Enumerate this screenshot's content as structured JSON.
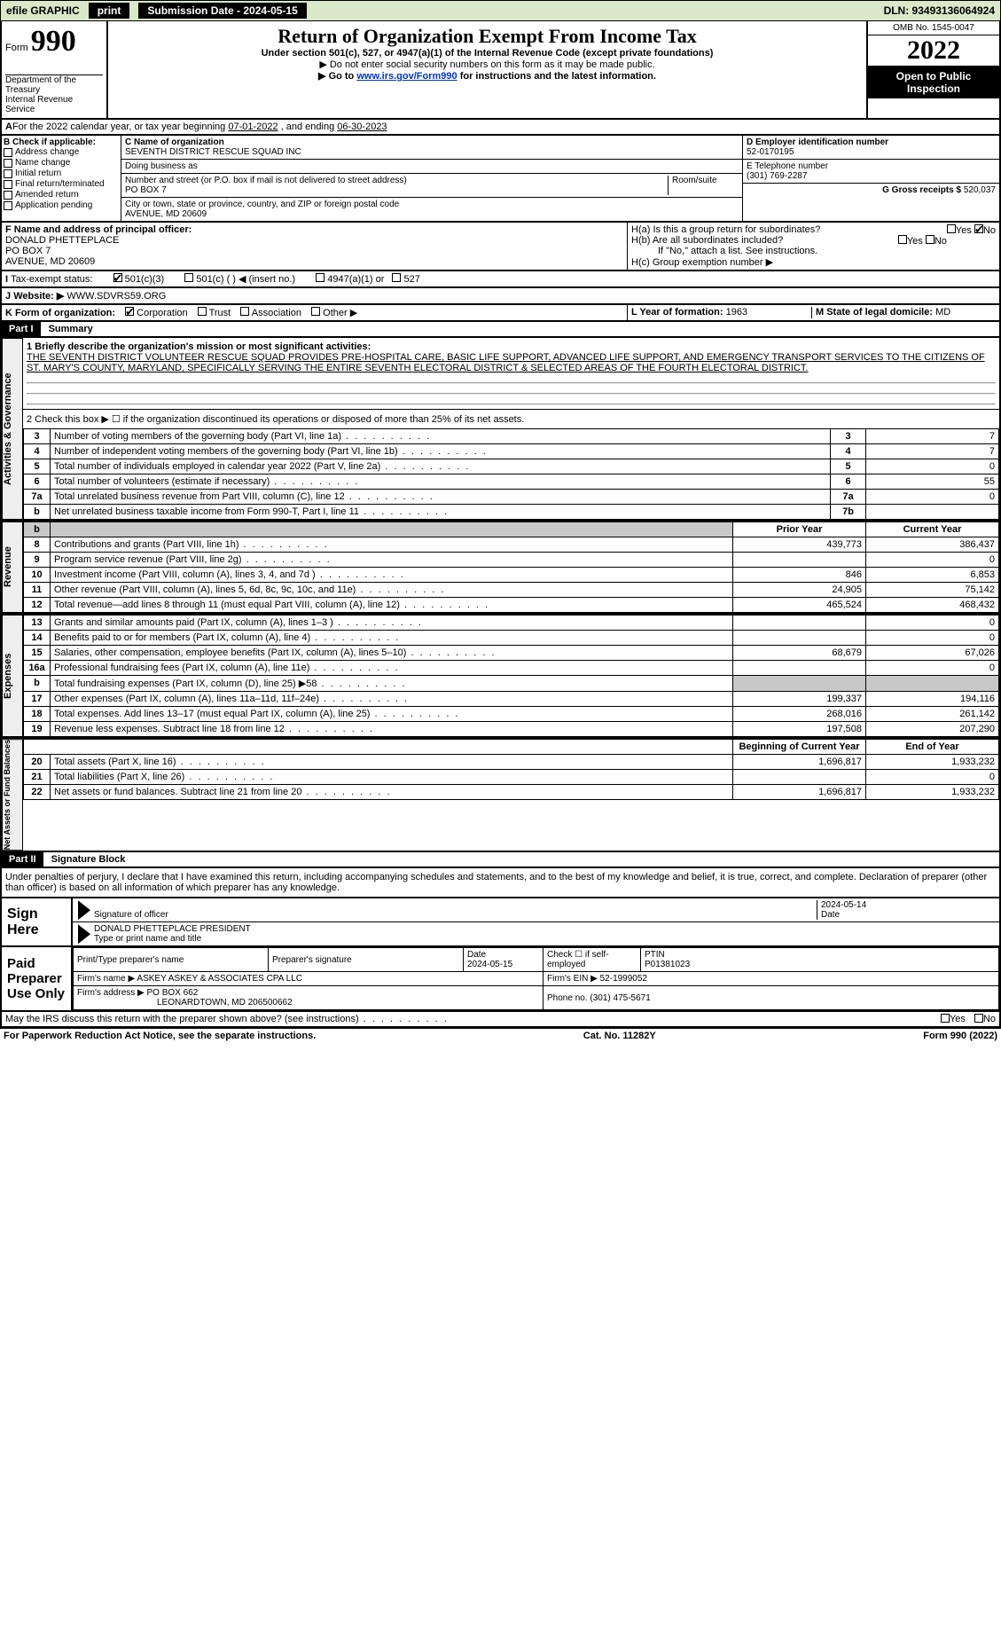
{
  "topbar": {
    "efile": "efile GRAPHIC",
    "print": "print",
    "submission_label": "Submission Date - 2024-05-15",
    "dln": "DLN: 93493136064924"
  },
  "header": {
    "form_prefix": "Form",
    "form_number": "990",
    "title": "Return of Organization Exempt From Income Tax",
    "subtitle": "Under section 501(c), 527, or 4947(a)(1) of the Internal Revenue Code (except private foundations)",
    "warn": "▶ Do not enter social security numbers on this form as it may be made public.",
    "goto_pre": "▶ Go to ",
    "goto_link": "www.irs.gov/Form990",
    "goto_post": " for instructions and the latest information.",
    "dept": "Department of the Treasury",
    "irs": "Internal Revenue Service",
    "omb": "OMB No. 1545-0047",
    "year": "2022",
    "open": "Open to Public Inspection"
  },
  "A": {
    "text_pre": "For the 2022 calendar year, or tax year beginning ",
    "begin": "07-01-2022",
    "mid": " , and ending ",
    "end": "06-30-2023"
  },
  "B": {
    "label": "B Check if applicable:",
    "items": [
      "Address change",
      "Name change",
      "Initial return",
      "Final return/terminated",
      "Amended return",
      "Application pending"
    ]
  },
  "C": {
    "label_name": "C Name of organization",
    "name": "SEVENTH DISTRICT RESCUE SQUAD INC",
    "dba_label": "Doing business as",
    "dba": "",
    "street_label": "Number and street (or P.O. box if mail is not delivered to street address)",
    "room_label": "Room/suite",
    "street": "PO BOX 7",
    "city_label": "City or town, state or province, country, and ZIP or foreign postal code",
    "city": "AVENUE, MD  20609"
  },
  "D": {
    "label": "D Employer identification number",
    "value": "52-0170195"
  },
  "E": {
    "label": "E Telephone number",
    "value": "(301) 769-2287"
  },
  "G": {
    "label": "G Gross receipts $",
    "value": "520,037"
  },
  "F": {
    "label": "F  Name and address of principal officer:",
    "name": "DONALD PHETTEPLACE",
    "addr1": "PO BOX 7",
    "addr2": "AVENUE, MD  20609"
  },
  "H": {
    "a": "H(a)  Is this a group return for subordinates?",
    "a_yes": "Yes",
    "a_no": "No",
    "b": "H(b)  Are all subordinates included?",
    "b_yes": "Yes",
    "b_no": "No",
    "b_note": "If \"No,\" attach a list. See instructions.",
    "c": "H(c)  Group exemption number ▶"
  },
  "I": {
    "label": "Tax-exempt status:",
    "opts": [
      "501(c)(3)",
      "501(c) (  ) ◀ (insert no.)",
      "4947(a)(1) or",
      "527"
    ]
  },
  "J": {
    "label": "Website: ▶",
    "value": "WWW.SDVRS59.ORG"
  },
  "K": {
    "label": "K Form of organization:",
    "opts": [
      "Corporation",
      "Trust",
      "Association",
      "Other ▶"
    ]
  },
  "L": {
    "label": "L Year of formation:",
    "value": "1963"
  },
  "M": {
    "label": "M State of legal domicile:",
    "value": "MD"
  },
  "part1": {
    "title": "Part I",
    "heading": "Summary",
    "line1_label": "1  Briefly describe the organization's mission or most significant activities:",
    "line1_text": "THE SEVENTH DISTRICT VOLUNTEER RESCUE SQUAD PROVIDES PRE-HOSPITAL CARE, BASIC LIFE SUPPORT, ADVANCED LIFE SUPPORT, AND EMERGENCY TRANSPORT SERVICES TO THE CITIZENS OF ST. MARY'S COUNTY, MARYLAND, SPECIFICALLY SERVING THE ENTIRE SEVENTH ELECTORAL DISTRICT & SELECTED AREAS OF THE FOURTH ELECTORAL DISTRICT.",
    "line2": "2   Check this box ▶ ☐  if the organization discontinued its operations or disposed of more than 25% of its net assets.",
    "sidebar_gov": "Activities & Governance",
    "sidebar_rev": "Revenue",
    "sidebar_exp": "Expenses",
    "sidebar_net": "Net Assets or Fund Balances",
    "col_prior": "Prior Year",
    "col_current": "Current Year",
    "col_boy": "Beginning of Current Year",
    "col_eoy": "End of Year",
    "rows_gov": [
      {
        "n": "3",
        "t": "Number of voting members of the governing body (Part VI, line 1a)",
        "box": "3",
        "v": "7"
      },
      {
        "n": "4",
        "t": "Number of independent voting members of the governing body (Part VI, line 1b)",
        "box": "4",
        "v": "7"
      },
      {
        "n": "5",
        "t": "Total number of individuals employed in calendar year 2022 (Part V, line 2a)",
        "box": "5",
        "v": "0"
      },
      {
        "n": "6",
        "t": "Total number of volunteers (estimate if necessary)",
        "box": "6",
        "v": "55"
      },
      {
        "n": "7a",
        "t": "Total unrelated business revenue from Part VIII, column (C), line 12",
        "box": "7a",
        "v": "0"
      },
      {
        "n": "b",
        "t": "Net unrelated business taxable income from Form 990-T, Part I, line 11",
        "box": "7b",
        "v": ""
      }
    ],
    "rows_rev": [
      {
        "n": "8",
        "t": "Contributions and grants (Part VIII, line 1h)",
        "p": "439,773",
        "c": "386,437"
      },
      {
        "n": "9",
        "t": "Program service revenue (Part VIII, line 2g)",
        "p": "",
        "c": "0"
      },
      {
        "n": "10",
        "t": "Investment income (Part VIII, column (A), lines 3, 4, and 7d )",
        "p": "846",
        "c": "6,853"
      },
      {
        "n": "11",
        "t": "Other revenue (Part VIII, column (A), lines 5, 6d, 8c, 9c, 10c, and 11e)",
        "p": "24,905",
        "c": "75,142"
      },
      {
        "n": "12",
        "t": "Total revenue—add lines 8 through 11 (must equal Part VIII, column (A), line 12)",
        "p": "465,524",
        "c": "468,432"
      }
    ],
    "rows_exp": [
      {
        "n": "13",
        "t": "Grants and similar amounts paid (Part IX, column (A), lines 1–3 )",
        "p": "",
        "c": "0"
      },
      {
        "n": "14",
        "t": "Benefits paid to or for members (Part IX, column (A), line 4)",
        "p": "",
        "c": "0"
      },
      {
        "n": "15",
        "t": "Salaries, other compensation, employee benefits (Part IX, column (A), lines 5–10)",
        "p": "68,679",
        "c": "67,026"
      },
      {
        "n": "16a",
        "t": "Professional fundraising fees (Part IX, column (A), line 11e)",
        "p": "",
        "c": "0"
      },
      {
        "n": "b",
        "t": "Total fundraising expenses (Part IX, column (D), line 25) ▶58",
        "p": "GRAY",
        "c": "GRAY"
      },
      {
        "n": "17",
        "t": "Other expenses (Part IX, column (A), lines 11a–11d, 11f–24e)",
        "p": "199,337",
        "c": "194,116"
      },
      {
        "n": "18",
        "t": "Total expenses. Add lines 13–17 (must equal Part IX, column (A), line 25)",
        "p": "268,016",
        "c": "261,142"
      },
      {
        "n": "19",
        "t": "Revenue less expenses. Subtract line 18 from line 12",
        "p": "197,508",
        "c": "207,290"
      }
    ],
    "rows_net": [
      {
        "n": "20",
        "t": "Total assets (Part X, line 16)",
        "p": "1,696,817",
        "c": "1,933,232"
      },
      {
        "n": "21",
        "t": "Total liabilities (Part X, line 26)",
        "p": "",
        "c": "0"
      },
      {
        "n": "22",
        "t": "Net assets or fund balances. Subtract line 21 from line 20",
        "p": "1,696,817",
        "c": "1,933,232"
      }
    ]
  },
  "part2": {
    "title": "Part II",
    "heading": "Signature Block",
    "declaration": "Under penalties of perjury, I declare that I have examined this return, including accompanying schedules and statements, and to the best of my knowledge and belief, it is true, correct, and complete. Declaration of preparer (other than officer) is based on all information of which preparer has any knowledge."
  },
  "sign": {
    "here": "Sign Here",
    "sig_officer": "Signature of officer",
    "date_label": "Date",
    "date": "2024-05-14",
    "name": "DONALD PHETTEPLACE  PRESIDENT",
    "name_label": "Type or print name and title"
  },
  "paid": {
    "label": "Paid Preparer Use Only",
    "h_name": "Print/Type preparer's name",
    "h_sig": "Preparer's signature",
    "h_date": "Date",
    "date": "2024-05-15",
    "self": "Check ☐ if self-employed",
    "ptin_label": "PTIN",
    "ptin": "P01381023",
    "firm_label": "Firm's name    ▶",
    "firm": "ASKEY ASKEY & ASSOCIATES CPA LLC",
    "ein_label": "Firm's EIN ▶",
    "ein": "52-1999052",
    "addr_label": "Firm's address ▶",
    "addr": "PO BOX 662",
    "addr2": "LEONARDTOWN, MD  206500662",
    "phone_label": "Phone no.",
    "phone": "(301) 475-5671"
  },
  "footer": {
    "discuss": "May the IRS discuss this return with the preparer shown above? (see instructions)",
    "yes": "Yes",
    "no": "No",
    "paperwork": "For Paperwork Reduction Act Notice, see the separate instructions.",
    "cat": "Cat. No. 11282Y",
    "formref": "Form 990 (2022)"
  },
  "style": {
    "bg_green": "#d9e8c9",
    "link_color": "#0033cc",
    "gray": "#c8c8c8"
  }
}
